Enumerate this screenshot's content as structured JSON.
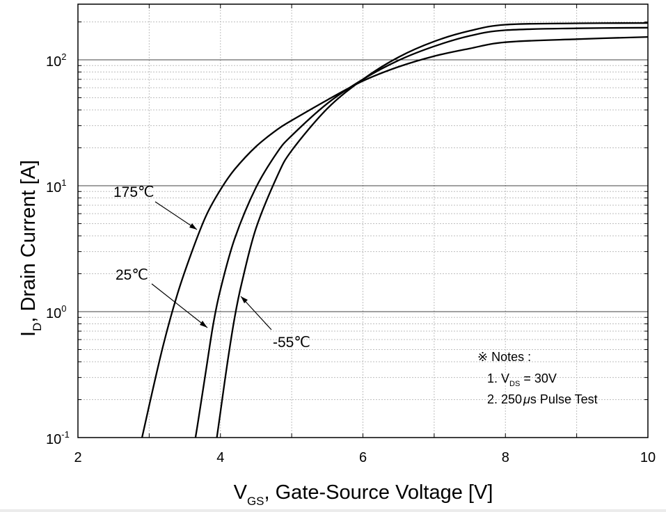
{
  "chart_data": {
    "type": "line",
    "x_scale": "linear",
    "y_scale": "log",
    "xlim": [
      2,
      10
    ],
    "ylim": [
      0.1,
      300
    ],
    "x_ticks": [
      "2",
      "4",
      "6",
      "8",
      "10"
    ],
    "y_ticks": [
      {
        "base": "10",
        "exp": "-1"
      },
      {
        "base": "10",
        "exp": "0"
      },
      {
        "base": "10",
        "exp": "1"
      },
      {
        "base": "10",
        "exp": "2"
      }
    ],
    "xlabel": {
      "main": "V",
      "sub": "GS",
      "rest": ", Gate-Source Voltage [V]"
    },
    "ylabel": {
      "main": "I",
      "sub": "D",
      "rest": ", Drain Current [A]"
    },
    "series": [
      {
        "name": "175℃",
        "x": [
          2.9,
          3.0,
          3.2,
          3.4,
          3.6,
          3.8,
          4.0,
          4.2,
          4.5,
          4.8,
          5.0,
          5.5,
          6.0,
          6.5,
          7.0,
          7.5,
          8.0,
          9.0,
          10.0
        ],
        "y": [
          0.1,
          0.18,
          0.55,
          1.4,
          3.0,
          5.8,
          9.3,
          13.5,
          20.5,
          28,
          33,
          48,
          68,
          88,
          107,
          123,
          138,
          146,
          152
        ]
      },
      {
        "name": "25℃",
        "x": [
          3.65,
          3.7,
          3.8,
          3.9,
          4.0,
          4.2,
          4.5,
          4.8,
          5.0,
          5.5,
          6.0,
          6.5,
          7.0,
          7.5,
          8.0,
          9.0,
          10.0
        ],
        "y": [
          0.1,
          0.15,
          0.35,
          0.8,
          1.5,
          3.8,
          9.7,
          18.5,
          25,
          45,
          70,
          99,
          128,
          155,
          172,
          178,
          180
        ]
      },
      {
        "name": "-55℃",
        "x": [
          3.95,
          4.0,
          4.1,
          4.2,
          4.3,
          4.5,
          4.8,
          5.0,
          5.5,
          6.0,
          6.5,
          7.0,
          7.5,
          8.0,
          9.0,
          10.0
        ],
        "y": [
          0.1,
          0.16,
          0.4,
          0.9,
          1.7,
          4.6,
          12,
          19,
          41,
          70,
          105,
          140,
          170,
          190,
          195,
          196
        ]
      }
    ],
    "annotations": [
      {
        "label": "175",
        "unit": "℃",
        "arrow_to": [
          3.7,
          3.5
        ]
      },
      {
        "label": "25",
        "unit": "℃",
        "arrow_to": [
          3.85,
          0.55
        ]
      },
      {
        "label": "-55",
        "unit": "℃",
        "arrow_to": [
          4.3,
          1.3
        ]
      }
    ],
    "notes": {
      "title": "※ Notes :",
      "line1": {
        "prefix": "1. V",
        "sub": "DS",
        "rest": " = 30V"
      },
      "line2": {
        "prefix": "2. 250",
        "mu": "μ",
        "rest": "s Pulse Test"
      }
    },
    "grid": true
  }
}
